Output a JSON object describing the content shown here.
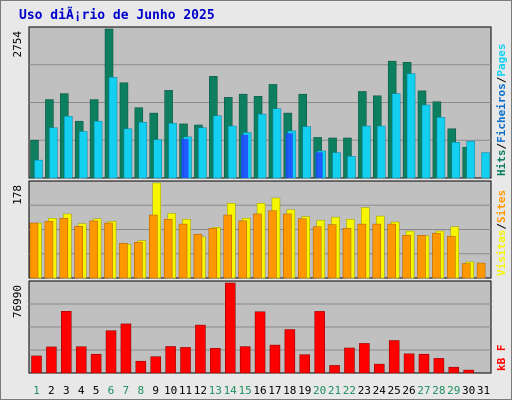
{
  "title": "Uso diÃ¡rio de Junho 2025",
  "colors": {
    "hits": "#0d7f5f",
    "ficheiros": "#14d0f0",
    "pages": "#14d0f0",
    "visits": "#f6f600",
    "sites": "#ff9800",
    "kb": "#ff0000",
    "weekend_day": "#1f8f5f",
    "highlight_pages": "#1f4cff",
    "panel_bg": "#c0c0c0"
  },
  "chart_data": [
    {
      "type": "bar",
      "panel": "top",
      "max_label": "2754",
      "ylim": [
        0,
        2754
      ],
      "legend": [
        {
          "label": "Hits",
          "color": "#0d7f5f"
        },
        {
          "label": "/",
          "color": "#000000"
        },
        {
          "label": "Ficheiros",
          "color": "#0b6fc8"
        },
        {
          "label": "/",
          "color": "#000000"
        },
        {
          "label": "Pages",
          "color": "#14d0f0"
        }
      ],
      "categories": [
        "1",
        "2",
        "3",
        "4",
        "5",
        "6",
        "7",
        "8",
        "9",
        "10",
        "11",
        "12",
        "13",
        "14",
        "15",
        "16",
        "17",
        "18",
        "19",
        "20",
        "21",
        "22",
        "23",
        "24",
        "25",
        "26",
        "27",
        "28",
        "29",
        "30",
        "31"
      ],
      "series": [
        {
          "name": "Hits",
          "values": [
            700,
            1450,
            1560,
            1050,
            1450,
            2754,
            1760,
            1300,
            1200,
            1620,
            1000,
            980,
            1880,
            1490,
            1550,
            1510,
            1730,
            1200,
            1550,
            750,
            740,
            740,
            1600,
            1520,
            2160,
            2140,
            1610,
            1410,
            910,
            570,
            0
          ]
        },
        {
          "name": "Ficheiros",
          "values": [
            330,
            930,
            1140,
            860,
            1050,
            1860,
            910,
            1030,
            710,
            1010,
            760,
            930,
            1150,
            960,
            840,
            1180,
            1280,
            870,
            950,
            500,
            470,
            400,
            960,
            960,
            1560,
            1930,
            1350,
            1120,
            660,
            680,
            470
          ]
        },
        {
          "name": "Pages",
          "values": [
            330,
            930,
            1140,
            860,
            1050,
            1860,
            910,
            1030,
            710,
            1010,
            760,
            930,
            1150,
            960,
            840,
            1180,
            1280,
            870,
            950,
            500,
            470,
            400,
            960,
            960,
            1560,
            1930,
            1350,
            1120,
            660,
            680,
            470
          ]
        }
      ]
    },
    {
      "type": "bar",
      "panel": "middle",
      "max_label": "178",
      "ylim": [
        0,
        178
      ],
      "legend": [
        {
          "label": "Visitas",
          "color": "#f6f600"
        },
        {
          "label": "/",
          "color": "#000000"
        },
        {
          "label": "Sites",
          "color": "#ff9800"
        }
      ],
      "categories": [
        "1",
        "2",
        "3",
        "4",
        "5",
        "6",
        "7",
        "8",
        "9",
        "10",
        "11",
        "12",
        "13",
        "14",
        "15",
        "16",
        "17",
        "18",
        "19",
        "20",
        "21",
        "22",
        "23",
        "24",
        "25",
        "26",
        "27",
        "28",
        "29",
        "30",
        "31"
      ],
      "series": [
        {
          "name": "Visitas",
          "values": [
            103,
            112,
            120,
            102,
            111,
            106,
            63,
            70,
            178,
            121,
            110,
            77,
            95,
            140,
            112,
            140,
            150,
            128,
            115,
            108,
            114,
            110,
            132,
            116,
            105,
            88,
            79,
            88,
            96,
            30,
            0
          ]
        },
        {
          "name": "Sites",
          "values": [
            103,
            106,
            112,
            97,
            107,
            103,
            65,
            67,
            118,
            110,
            101,
            82,
            93,
            118,
            107,
            120,
            126,
            120,
            111,
            96,
            100,
            93,
            101,
            101,
            101,
            80,
            80,
            84,
            78,
            27,
            28
          ]
        }
      ]
    },
    {
      "type": "bar",
      "panel": "bottom",
      "max_label": "76990",
      "ylim": [
        0,
        76990
      ],
      "legend": [
        {
          "label": "kB F",
          "color": "#ff0000"
        }
      ],
      "categories": [
        "1",
        "2",
        "3",
        "4",
        "5",
        "6",
        "7",
        "8",
        "9",
        "10",
        "11",
        "12",
        "13",
        "14",
        "15",
        "16",
        "17",
        "18",
        "19",
        "20",
        "21",
        "22",
        "23",
        "24",
        "25",
        "26",
        "27",
        "28",
        "29",
        "30",
        "31"
      ],
      "series": [
        {
          "name": "kB F",
          "values": [
            14600,
            22300,
            52800,
            22500,
            16100,
            36200,
            42000,
            10100,
            14000,
            22700,
            21900,
            41000,
            21100,
            76990,
            22600,
            52400,
            23900,
            37200,
            15700,
            52700,
            6500,
            21400,
            25300,
            7600,
            27800,
            16400,
            16100,
            12500,
            5000,
            2500,
            0
          ]
        }
      ],
      "weekend_days": [
        1,
        6,
        7,
        8,
        13,
        14,
        15,
        20,
        21,
        22,
        27,
        28,
        29
      ]
    }
  ]
}
